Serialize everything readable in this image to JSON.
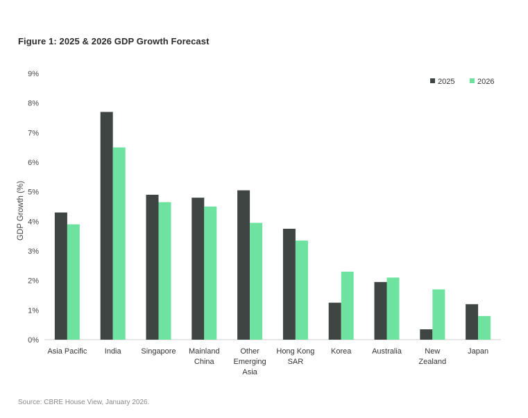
{
  "title": "Figure 1: 2025 & 2026 GDP Growth Forecast",
  "source": "Source: CBRE House View, January 2026.",
  "colors": {
    "series_2025": "#3f4543",
    "series_2026": "#6ee3a0",
    "axis": "#cccccc"
  },
  "chart_data": {
    "type": "bar",
    "title": "Figure 1: 2025 & 2026 GDP Growth Forecast",
    "xlabel": "",
    "ylabel": "GDP Growth (%)",
    "ylim": [
      0,
      9
    ],
    "yticks": [
      0,
      1,
      2,
      3,
      4,
      5,
      6,
      7,
      8,
      9
    ],
    "ytick_labels": [
      "0%",
      "1%",
      "2%",
      "3%",
      "4%",
      "5%",
      "6%",
      "7%",
      "8%",
      "9%"
    ],
    "grid": false,
    "legend_position": "top-right",
    "categories": [
      [
        "Asia Pacific"
      ],
      [
        "India"
      ],
      [
        "Singapore"
      ],
      [
        "Mainland",
        "China"
      ],
      [
        "Other",
        "Emerging",
        "Asia"
      ],
      [
        "Hong Kong",
        "SAR"
      ],
      [
        "Korea"
      ],
      [
        "Australia"
      ],
      [
        "New",
        "Zealand"
      ],
      [
        "Japan"
      ]
    ],
    "series": [
      {
        "name": "2025",
        "values": [
          4.3,
          7.7,
          4.9,
          4.8,
          5.05,
          3.75,
          1.25,
          1.95,
          0.35,
          1.2
        ]
      },
      {
        "name": "2026",
        "values": [
          3.9,
          6.5,
          4.65,
          4.5,
          3.95,
          3.35,
          2.3,
          2.1,
          1.7,
          0.8
        ]
      }
    ]
  }
}
